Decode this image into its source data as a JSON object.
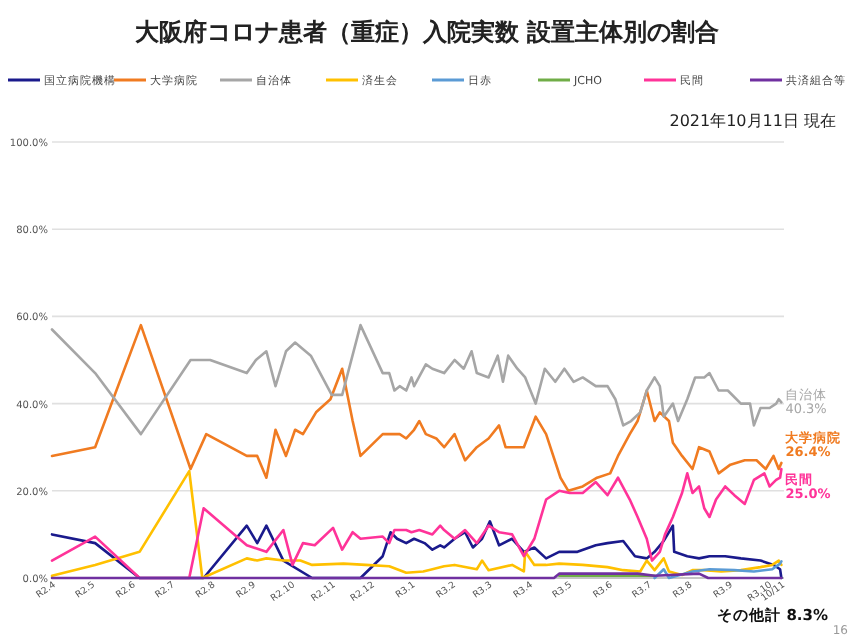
{
  "chart_data": {
    "type": "line",
    "title": "大阪府コロナ患者（重症）入院実数 設置主体別の割合",
    "subtitle": "2021年10月11日 現在",
    "xlim": [
      "2020-04-01",
      "2021-10-13"
    ],
    "xticks": [
      {
        "value": "2020-04-01",
        "label": "R2.4"
      },
      {
        "value": "2020-05-01",
        "label": "R2.5"
      },
      {
        "value": "2020-06-01",
        "label": "R2.6"
      },
      {
        "value": "2020-07-01",
        "label": "R2.7"
      },
      {
        "value": "2020-08-01",
        "label": "R2.8"
      },
      {
        "value": "2020-09-01",
        "label": "R2.9"
      },
      {
        "value": "2020-10-01",
        "label": "R2.10"
      },
      {
        "value": "2020-11-01",
        "label": "R2.11"
      },
      {
        "value": "2020-12-01",
        "label": "R2.12"
      },
      {
        "value": "2021-01-01",
        "label": "R3.1"
      },
      {
        "value": "2021-02-01",
        "label": "R3.2"
      },
      {
        "value": "2021-03-01",
        "label": "R3.3"
      },
      {
        "value": "2021-04-01",
        "label": "R3.4"
      },
      {
        "value": "2021-05-01",
        "label": "R3.5"
      },
      {
        "value": "2021-06-01",
        "label": "R3.6"
      },
      {
        "value": "2021-07-01",
        "label": "R3.7"
      },
      {
        "value": "2021-08-01",
        "label": "R3.8"
      },
      {
        "value": "2021-09-01",
        "label": "R3.9"
      },
      {
        "value": "2021-10-01",
        "label": "R3.10"
      },
      {
        "value": "2021-10-11",
        "label": "10/11"
      }
    ],
    "ylim": [
      0,
      100
    ],
    "yticks": [
      {
        "value": 0,
        "label": "0.0%"
      },
      {
        "value": 20,
        "label": "20.0%"
      },
      {
        "value": 40,
        "label": "40.0%"
      },
      {
        "value": 60,
        "label": "60.0%"
      },
      {
        "value": 80,
        "label": "80.0%"
      },
      {
        "value": 100,
        "label": "100.0%"
      }
    ],
    "grid": "y",
    "legend": "top",
    "marker": "none",
    "line_style": "solid",
    "series": [
      {
        "name": "国立病院機構",
        "color": "#1a1a8c",
        "x": [
          "2020-04-01",
          "2020-05-04",
          "2020-06-07",
          "2020-07-26",
          "2020-08-28",
          "2020-09-05",
          "2020-09-12",
          "2020-09-25",
          "2020-10-17",
          "2020-11-23",
          "2020-12-10",
          "2020-12-16",
          "2020-12-21",
          "2020-12-28",
          "2021-01-03",
          "2021-01-11",
          "2021-01-17",
          "2021-01-23",
          "2021-01-26",
          "2021-02-03",
          "2021-02-11",
          "2021-02-17",
          "2021-02-24",
          "2021-03-02",
          "2021-03-09",
          "2021-03-19",
          "2021-03-28",
          "2021-04-05",
          "2021-04-14",
          "2021-04-24",
          "2021-05-08",
          "2021-05-22",
          "2021-05-31",
          "2021-06-12",
          "2021-06-21",
          "2021-06-30",
          "2021-07-06",
          "2021-07-13",
          "2021-07-20",
          "2021-07-21",
          "2021-07-31",
          "2021-08-09",
          "2021-08-17",
          "2021-08-29",
          "2021-09-10",
          "2021-09-25",
          "2021-10-05",
          "2021-10-10",
          "2021-10-11"
        ],
        "values": [
          10,
          8,
          0,
          0,
          12,
          8,
          12,
          4,
          0,
          0,
          5,
          10.5,
          9,
          8,
          9,
          8,
          6.5,
          7.5,
          7,
          9,
          10.5,
          7,
          9,
          13,
          7.5,
          9,
          6,
          7,
          4.5,
          6,
          6,
          7.5,
          8,
          8.5,
          5,
          4.5,
          6,
          8.5,
          12,
          6,
          5,
          4.5,
          5,
          5,
          4.5,
          4,
          3,
          2,
          0
        ]
      },
      {
        "name": "大学病院",
        "color": "#f07b21",
        "x": [
          "2020-04-01",
          "2020-05-04",
          "2020-06-08",
          "2020-07-16",
          "2020-07-28",
          "2020-08-28",
          "2020-09-05",
          "2020-09-12",
          "2020-09-19",
          "2020-09-27",
          "2020-10-04",
          "2020-10-10",
          "2020-10-20",
          "2020-10-31",
          "2020-11-09",
          "2020-11-17",
          "2020-11-23",
          "2020-12-10",
          "2020-12-16",
          "2020-12-23",
          "2020-12-28",
          "2021-01-03",
          "2021-01-07",
          "2021-01-12",
          "2021-01-20",
          "2021-01-23",
          "2021-01-26",
          "2021-02-03",
          "2021-02-11",
          "2021-02-20",
          "2021-03-01",
          "2021-03-09",
          "2021-03-14",
          "2021-03-21",
          "2021-03-28",
          "2021-04-06",
          "2021-04-14",
          "2021-04-25",
          "2021-05-01",
          "2021-05-12",
          "2021-05-23",
          "2021-06-02",
          "2021-06-08",
          "2021-06-17",
          "2021-06-23",
          "2021-06-30",
          "2021-07-06",
          "2021-07-10",
          "2021-07-17",
          "2021-07-20",
          "2021-07-27",
          "2021-08-04",
          "2021-08-09",
          "2021-08-17",
          "2021-08-24",
          "2021-09-02",
          "2021-09-13",
          "2021-09-22",
          "2021-09-29",
          "2021-10-05",
          "2021-10-09",
          "2021-10-11"
        ],
        "values": [
          28,
          30,
          58,
          25,
          33,
          28,
          28,
          23,
          34,
          28,
          34,
          33,
          38,
          41,
          48,
          36,
          28,
          33,
          33,
          33,
          32,
          34,
          36,
          33,
          32,
          31,
          30,
          33,
          27,
          30,
          32,
          35,
          30,
          30,
          30,
          37,
          33,
          23,
          20,
          21,
          23,
          24,
          28,
          33,
          36,
          43,
          36,
          38,
          36,
          31,
          28,
          25,
          30,
          29,
          24,
          26,
          27,
          27,
          25,
          28,
          25,
          26.4
        ]
      },
      {
        "name": "自治体",
        "color": "#a6a6a6",
        "x": [
          "2020-04-01",
          "2020-05-04",
          "2020-06-08",
          "2020-07-16",
          "2020-07-31",
          "2020-08-28",
          "2020-09-04",
          "2020-09-12",
          "2020-09-19",
          "2020-09-27",
          "2020-10-04",
          "2020-10-16",
          "2020-11-01",
          "2020-11-09",
          "2020-11-23",
          "2020-12-10",
          "2020-12-15",
          "2020-12-19",
          "2020-12-23",
          "2020-12-28",
          "2021-01-01",
          "2021-01-03",
          "2021-01-12",
          "2021-01-17",
          "2021-01-26",
          "2021-02-03",
          "2021-02-10",
          "2021-02-16",
          "2021-02-20",
          "2021-03-01",
          "2021-03-08",
          "2021-03-12",
          "2021-03-16",
          "2021-03-23",
          "2021-03-29",
          "2021-04-06",
          "2021-04-13",
          "2021-04-21",
          "2021-04-28",
          "2021-05-05",
          "2021-05-12",
          "2021-05-22",
          "2021-05-31",
          "2021-06-06",
          "2021-06-12",
          "2021-06-18",
          "2021-06-25",
          "2021-06-30",
          "2021-07-06",
          "2021-07-10",
          "2021-07-13",
          "2021-07-20",
          "2021-07-24",
          "2021-07-31",
          "2021-08-06",
          "2021-08-13",
          "2021-08-17",
          "2021-08-24",
          "2021-08-31",
          "2021-09-10",
          "2021-09-17",
          "2021-09-20",
          "2021-09-25",
          "2021-10-02",
          "2021-10-07",
          "2021-10-09",
          "2021-10-11"
        ],
        "values": [
          57,
          47,
          33,
          50,
          50,
          47,
          50,
          52,
          44,
          52,
          54,
          51,
          42,
          42,
          58,
          47,
          47,
          43,
          44,
          43,
          46,
          44,
          49,
          48,
          47,
          50,
          48,
          52,
          47,
          46,
          51,
          45,
          51,
          48,
          46,
          40,
          48,
          45,
          48,
          45,
          46,
          44,
          44,
          41,
          35,
          36,
          38,
          43,
          46,
          44,
          37,
          40,
          36,
          41,
          46,
          46,
          47,
          43,
          43,
          40,
          40,
          35,
          39,
          39,
          40,
          41,
          40.3
        ]
      },
      {
        "name": "済生会",
        "color": "#ffc000",
        "x": [
          "2020-04-01",
          "2020-05-04",
          "2020-06-07",
          "2020-07-15",
          "2020-07-25",
          "2020-08-28",
          "2020-09-05",
          "2020-09-12",
          "2020-09-25",
          "2020-10-08",
          "2020-10-17",
          "2020-11-10",
          "2020-11-27",
          "2020-12-15",
          "2020-12-28",
          "2021-01-10",
          "2021-01-17",
          "2021-01-26",
          "2021-02-03",
          "2021-02-20",
          "2021-02-24",
          "2021-03-01",
          "2021-03-19",
          "2021-03-28",
          "2021-03-29",
          "2021-04-05",
          "2021-04-14",
          "2021-04-24",
          "2021-05-12",
          "2021-05-31",
          "2021-06-12",
          "2021-06-25",
          "2021-06-30",
          "2021-07-06",
          "2021-07-13",
          "2021-07-17",
          "2021-07-27",
          "2021-08-04",
          "2021-08-13",
          "2021-08-26",
          "2021-09-10",
          "2021-09-25",
          "2021-10-04",
          "2021-10-09",
          "2021-10-11"
        ],
        "values": [
          0.5,
          3,
          6,
          24.5,
          0,
          4.5,
          4,
          4.5,
          4,
          4,
          3,
          3.3,
          3,
          2.7,
          1.2,
          1.5,
          2,
          2.7,
          3,
          2,
          4,
          1.8,
          3,
          1.5,
          6,
          3,
          3,
          3.3,
          3,
          2.5,
          1.8,
          1.5,
          4,
          1.8,
          4.5,
          1.5,
          0.7,
          1.8,
          1.8,
          1.5,
          1.8,
          2.5,
          3,
          4,
          3
        ]
      },
      {
        "name": "日赤",
        "color": "#5b9bd5",
        "x": [
          "2021-07-06",
          "2021-07-13",
          "2021-07-17",
          "2021-08-04",
          "2021-08-17",
          "2021-09-05",
          "2021-09-20",
          "2021-10-04",
          "2021-10-10",
          "2021-10-11"
        ],
        "values": [
          0,
          2,
          0,
          1.5,
          2,
          1.8,
          1.5,
          2,
          3.3,
          3.8
        ]
      },
      {
        "name": "JCHO",
        "color": "#70ad47",
        "x": [
          "2021-04-24",
          "2021-06-11",
          "2021-07-06"
        ],
        "values": [
          0.5,
          0.5,
          0.5
        ]
      },
      {
        "name": "民間",
        "color": "#ff3399",
        "x": [
          "2020-04-01",
          "2020-05-04",
          "2020-06-07",
          "2020-07-15",
          "2020-07-26",
          "2020-08-28",
          "2020-09-12",
          "2020-09-25",
          "2020-10-02",
          "2020-10-10",
          "2020-10-19",
          "2020-11-02",
          "2020-11-09",
          "2020-11-17",
          "2020-11-23",
          "2020-12-10",
          "2020-12-15",
          "2020-12-19",
          "2020-12-28",
          "2021-01-01",
          "2021-01-07",
          "2021-01-17",
          "2021-01-23",
          "2021-01-26",
          "2021-02-03",
          "2021-02-11",
          "2021-02-20",
          "2021-03-01",
          "2021-03-09",
          "2021-03-19",
          "2021-03-28",
          "2021-04-05",
          "2021-04-14",
          "2021-04-24",
          "2021-05-02",
          "2021-05-12",
          "2021-05-22",
          "2021-05-31",
          "2021-06-08",
          "2021-06-17",
          "2021-06-23",
          "2021-06-30",
          "2021-07-04",
          "2021-07-10",
          "2021-07-14",
          "2021-07-20",
          "2021-07-27",
          "2021-07-31",
          "2021-08-04",
          "2021-08-09",
          "2021-08-13",
          "2021-08-17",
          "2021-08-22",
          "2021-08-29",
          "2021-09-05",
          "2021-09-13",
          "2021-09-20",
          "2021-09-28",
          "2021-10-02",
          "2021-10-07",
          "2021-10-10",
          "2021-10-11"
        ],
        "values": [
          4,
          9.5,
          0,
          0,
          16,
          7.5,
          6,
          11,
          3,
          8,
          7.5,
          11.5,
          6.5,
          10.5,
          9,
          9.5,
          8,
          11,
          11,
          10.5,
          11,
          10,
          12,
          11,
          9,
          11,
          8,
          12,
          10.5,
          10,
          5,
          9,
          18,
          20,
          19.5,
          19.5,
          22,
          19,
          23,
          18,
          14,
          9,
          4,
          6,
          10,
          14,
          19.5,
          24,
          19.5,
          21,
          16,
          14,
          18,
          21,
          19,
          17,
          22.5,
          24,
          21,
          22.5,
          23,
          25
        ]
      },
      {
        "name": "共済組合等",
        "color": "#7030a0",
        "x": [
          "2020-04-01",
          "2021-04-20",
          "2021-04-24",
          "2021-06-23",
          "2021-07-06",
          "2021-08-09",
          "2021-08-16",
          "2021-10-11"
        ],
        "values": [
          0,
          0,
          1,
          1,
          0.5,
          1,
          0,
          0
        ]
      }
    ],
    "annotations": [
      {
        "text": "自治体\n40.3%",
        "x": "2021-10-11",
        "y": 40.3
      },
      {
        "text": "大学病院\n26.4%",
        "x": "2021-10-11",
        "y": 26.4
      },
      {
        "text": "民間\n25.0%",
        "x": "2021-10-11",
        "y": 25
      },
      "その他計 8.3%",
      "16"
    ]
  }
}
